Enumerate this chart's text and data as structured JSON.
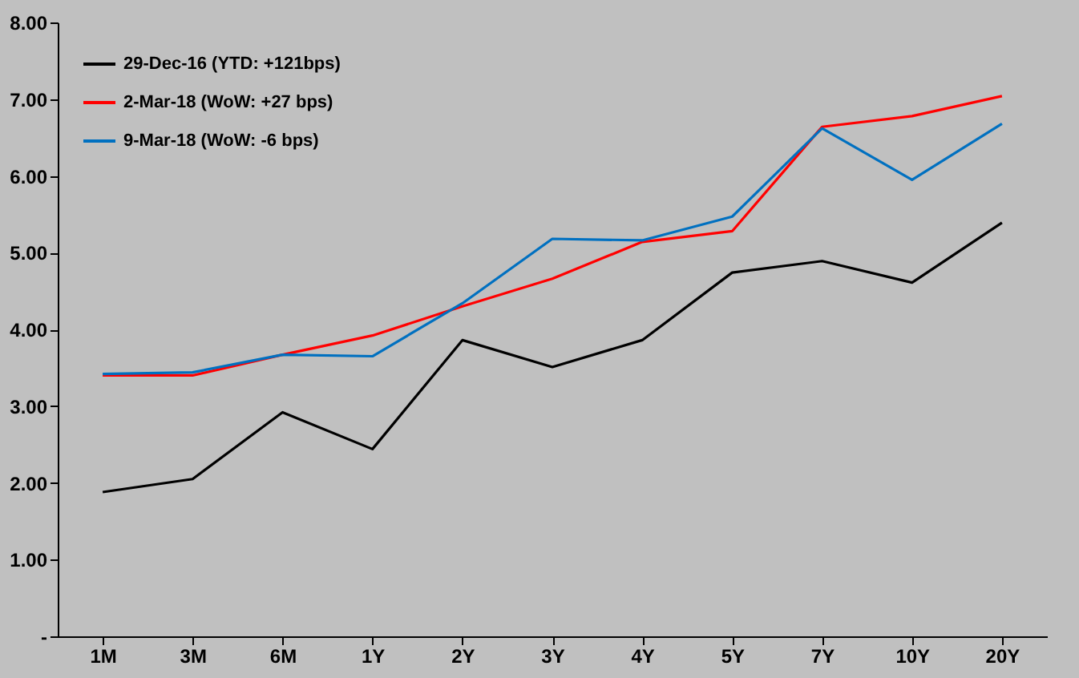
{
  "chart_data": {
    "type": "line",
    "categories": [
      "1M",
      "3M",
      "6M",
      "1Y",
      "2Y",
      "3Y",
      "4Y",
      "5Y",
      "7Y",
      "10Y",
      "20Y"
    ],
    "series": [
      {
        "name": "29-Dec-16  (YTD: +121bps)",
        "color": "#000000",
        "values": [
          1.88,
          2.05,
          2.92,
          2.44,
          3.86,
          3.51,
          3.86,
          4.74,
          4.89,
          4.61,
          5.39
        ]
      },
      {
        "name": "2-Mar-18  (WoW: +27 bps)",
        "color": "#ff0000",
        "values": [
          3.4,
          3.4,
          3.67,
          3.92,
          4.3,
          4.66,
          5.14,
          5.28,
          6.64,
          6.78,
          7.04
        ]
      },
      {
        "name": "9-Mar-18  (WoW: -6 bps)",
        "color": "#0070c0",
        "values": [
          3.42,
          3.44,
          3.67,
          3.65,
          4.34,
          5.18,
          5.16,
          5.47,
          6.62,
          5.95,
          6.68
        ]
      }
    ],
    "ylim": [
      0,
      8
    ],
    "yticks": [
      {
        "value": 0,
        "label": "-"
      },
      {
        "value": 1,
        "label": "1.00"
      },
      {
        "value": 2,
        "label": "2.00"
      },
      {
        "value": 3,
        "label": "3.00"
      },
      {
        "value": 4,
        "label": "4.00"
      },
      {
        "value": 5,
        "label": "5.00"
      },
      {
        "value": 6,
        "label": "6.00"
      },
      {
        "value": 7,
        "label": "7.00"
      },
      {
        "value": 8,
        "label": "8.00"
      }
    ],
    "grid": false,
    "legend": "top left",
    "marker": "none",
    "line_style": "solid"
  }
}
